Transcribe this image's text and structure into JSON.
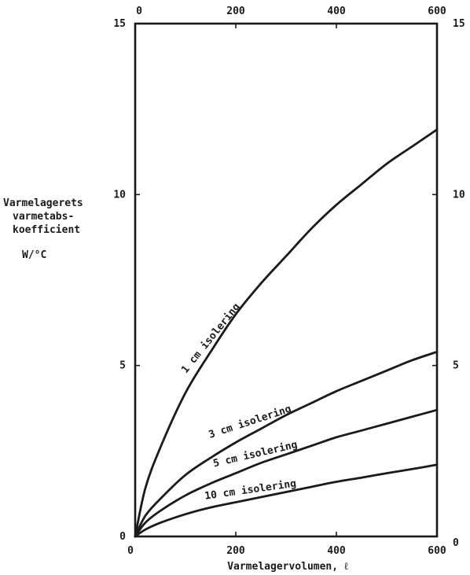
{
  "chart_data": {
    "type": "line",
    "title": "",
    "xlabel": "Varmelagervolumen,  ℓ",
    "ylabel_lines": [
      "Varmelagerets",
      "varmetabs-",
      "koefficient"
    ],
    "ylabel_unit": "W/°C",
    "xlim": [
      0,
      600
    ],
    "ylim": [
      0,
      15
    ],
    "x_ticks": [
      0,
      200,
      400,
      600
    ],
    "y_ticks": [
      0,
      5,
      10,
      15
    ],
    "top_axis_ticks": [
      0,
      200,
      400,
      600
    ],
    "right_axis_ticks": [
      0,
      5,
      10,
      15
    ],
    "grid": false,
    "series": [
      {
        "name": "1 cm isolering",
        "x": [
          0,
          20,
          50,
          100,
          150,
          200,
          250,
          300,
          350,
          400,
          450,
          500,
          550,
          600
        ],
        "y": [
          0,
          1.4,
          2.6,
          4.2,
          5.4,
          6.5,
          7.4,
          8.2,
          9.0,
          9.7,
          10.3,
          10.9,
          11.4,
          11.9
        ]
      },
      {
        "name": "3 cm isolering",
        "x": [
          0,
          20,
          50,
          100,
          150,
          200,
          250,
          300,
          350,
          400,
          450,
          500,
          550,
          600
        ],
        "y": [
          0,
          0.6,
          1.1,
          1.8,
          2.3,
          2.75,
          3.15,
          3.55,
          3.9,
          4.25,
          4.55,
          4.85,
          5.15,
          5.4
        ]
      },
      {
        "name": "5 cm isolering",
        "x": [
          0,
          20,
          50,
          100,
          150,
          200,
          250,
          300,
          350,
          400,
          450,
          500,
          550,
          600
        ],
        "y": [
          0,
          0.4,
          0.75,
          1.2,
          1.55,
          1.85,
          2.15,
          2.4,
          2.65,
          2.9,
          3.1,
          3.3,
          3.5,
          3.7
        ]
      },
      {
        "name": "10 cm isolering",
        "x": [
          0,
          20,
          50,
          100,
          150,
          200,
          250,
          300,
          350,
          400,
          450,
          500,
          550,
          600
        ],
        "y": [
          0,
          0.2,
          0.4,
          0.65,
          0.85,
          1.0,
          1.15,
          1.3,
          1.45,
          1.6,
          1.72,
          1.85,
          1.97,
          2.1
        ]
      }
    ]
  }
}
